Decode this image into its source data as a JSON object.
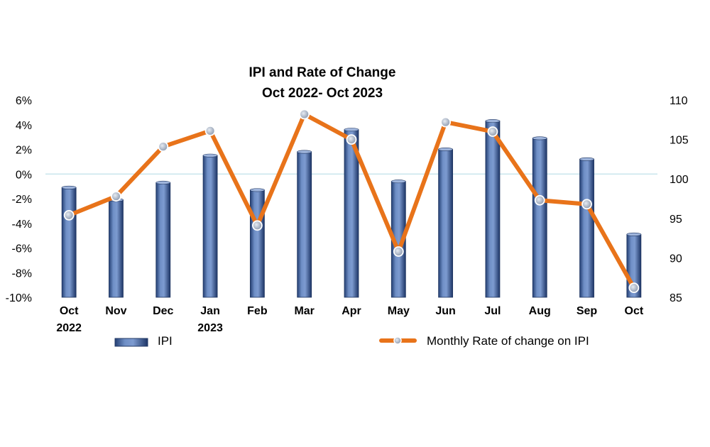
{
  "chart_data": {
    "type": "bar+line",
    "title_lines": [
      "IPI and Rate of Change",
      "Oct 2022- Oct 2023"
    ],
    "categories": [
      [
        "Oct",
        "2022"
      ],
      [
        "Nov"
      ],
      [
        "Dec"
      ],
      [
        "Jan",
        "2023"
      ],
      [
        "Feb"
      ],
      [
        "Mar"
      ],
      [
        "Apr"
      ],
      [
        "May"
      ],
      [
        "Jun"
      ],
      [
        "Jul"
      ],
      [
        "Aug"
      ],
      [
        "Sep"
      ],
      [
        "Oct"
      ]
    ],
    "left_axis": {
      "ticks": [
        "6%",
        "4%",
        "2%",
        "0%",
        "-2%",
        "-4%",
        "-6%",
        "-8%",
        "-10%"
      ],
      "range": [
        -10,
        6
      ]
    },
    "right_axis": {
      "ticks": [
        "110",
        "105",
        "100",
        "95",
        "90",
        "85"
      ],
      "range": [
        85,
        110
      ]
    },
    "series": [
      {
        "name": "IPI",
        "type": "bar",
        "axis": "left",
        "values": [
          -1.1,
          -2.1,
          -0.7,
          1.5,
          -1.3,
          1.8,
          3.6,
          -0.6,
          2.0,
          4.3,
          2.9,
          1.2,
          -4.9
        ]
      },
      {
        "name": "Monthly Rate of change on IPI",
        "type": "line",
        "axis": "right",
        "values": [
          95.4,
          97.8,
          104.1,
          106.1,
          94.1,
          108.2,
          105.0,
          90.8,
          107.2,
          106.0,
          97.3,
          96.8,
          86.2
        ]
      }
    ],
    "legend": [
      "IPI",
      "Monthly Rate of change on IPI"
    ],
    "colors": {
      "bar": "#4f6fa8",
      "line": "#e8731a",
      "marker": "#b8c2d2",
      "zero_line": "#bfe0ea"
    }
  }
}
